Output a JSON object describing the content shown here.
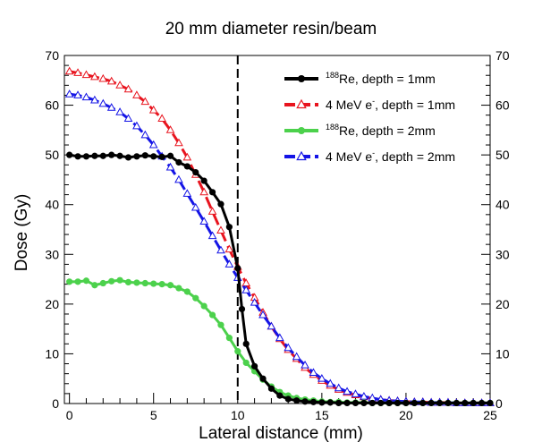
{
  "chart_data": {
    "type": "line",
    "title": "20 mm diameter resin/beam",
    "xlabel": "Lateral distance (mm)",
    "ylabel": "Dose (Gy)",
    "xlim": [
      -0.3,
      25
    ],
    "ylim": [
      0,
      70
    ],
    "x_ticks": [
      0,
      5,
      10,
      15,
      20,
      25
    ],
    "y_ticks": [
      0,
      10,
      20,
      30,
      40,
      50,
      60,
      70
    ],
    "grid": false,
    "legend_position": "top-right",
    "reference_line": {
      "x": 10,
      "style": "dashed",
      "color": "#000000"
    },
    "series": [
      {
        "name": "Re, depth = 1mm",
        "name_superscript": "188",
        "color": "#000000",
        "line_style": "solid",
        "marker": "circle-filled",
        "x": [
          0,
          0.5,
          1,
          1.5,
          2,
          2.5,
          3,
          3.5,
          4,
          4.5,
          5,
          5.5,
          6,
          6.5,
          7,
          7.5,
          8,
          8.5,
          9,
          9.5,
          10,
          10.25,
          10.5,
          11,
          11.5,
          12,
          12.5,
          13,
          13.5,
          14,
          14.5,
          15,
          15.5,
          16,
          16.5,
          17,
          17.5,
          18,
          18.5,
          19,
          19.5,
          20,
          20.5,
          21,
          21.5,
          22,
          22.5,
          23,
          23.5,
          24,
          24.5,
          25
        ],
        "y": [
          50,
          49.7,
          49.7,
          49.8,
          49.8,
          50,
          49.8,
          49.5,
          49.7,
          49.9,
          49.7,
          49.6,
          49.8,
          48.5,
          47.7,
          46.5,
          44.8,
          42.5,
          40.1,
          35.5,
          27.2,
          19,
          12,
          7.5,
          5,
          3,
          1.6,
          0.9,
          0.6,
          0.4,
          0.3,
          0.2,
          0.2,
          0.1,
          0.1,
          0.1,
          0.1,
          0.1,
          0.1,
          0.1,
          0.1,
          0.1,
          0.1,
          0.1,
          0.1,
          0.1,
          0.1,
          0.1,
          0.1,
          0.1,
          0.1,
          0.1
        ]
      },
      {
        "name": "4 MeV e, depth = 1mm",
        "name_superscript": "-",
        "color": "#e8141e",
        "line_style": "dashed",
        "marker": "triangle-open",
        "x": [
          0,
          0.5,
          1,
          1.5,
          2,
          2.5,
          3,
          3.5,
          4,
          4.5,
          5,
          5.5,
          6,
          6.5,
          7,
          7.5,
          8,
          8.5,
          9,
          9.5,
          10,
          10.5,
          11,
          11.5,
          12,
          12.5,
          13,
          13.5,
          14,
          14.5,
          15,
          15.5,
          16,
          16.5,
          17,
          17.5,
          18,
          18.5,
          19,
          19.5,
          20,
          20.5,
          21,
          21.5,
          22,
          22.5,
          23,
          23.5,
          24,
          24.5,
          25
        ],
        "y": [
          66.8,
          66.5,
          66.1,
          65.7,
          65.3,
          64.8,
          64,
          63.2,
          62,
          60.7,
          59,
          57.3,
          55,
          52.4,
          49.5,
          46,
          42.5,
          38.6,
          34.8,
          31,
          27.5,
          24.2,
          21.3,
          18.3,
          15.5,
          13,
          10.8,
          9,
          7.2,
          5.8,
          4.6,
          3.6,
          2.8,
          2.2,
          1.7,
          1.3,
          1,
          0.8,
          0.6,
          0.5,
          0.4,
          0.3,
          0.3,
          0.2,
          0.2,
          0.2,
          0.1,
          0.1,
          0.1,
          0.1,
          0.1
        ]
      },
      {
        "name": "Re, depth = 2mm",
        "name_superscript": "188",
        "color": "#4cd14c",
        "line_style": "solid",
        "marker": "circle-filled",
        "x": [
          0,
          0.5,
          1,
          1.5,
          2,
          2.5,
          3,
          3.5,
          4,
          4.5,
          5,
          5.5,
          6,
          6.5,
          7,
          7.5,
          8,
          8.5,
          9,
          9.5,
          10,
          10.5,
          11,
          11.5,
          12,
          12.5,
          13,
          13.5,
          14,
          14.5,
          15,
          15.5,
          16,
          16.5,
          17,
          17.5,
          18,
          18.5,
          19,
          19.5,
          20,
          20.5,
          21,
          21.5,
          22,
          22.5,
          23,
          23.5,
          24,
          24.5,
          25
        ],
        "y": [
          24.5,
          24.5,
          24.7,
          23.8,
          24.2,
          24.6,
          24.8,
          24.4,
          24.3,
          24.2,
          24.1,
          24,
          23.8,
          23.2,
          22.5,
          21.2,
          19.6,
          17.8,
          15.8,
          13.2,
          10.5,
          8.2,
          6.5,
          4.8,
          3.4,
          2.3,
          1.6,
          1.1,
          0.8,
          0.6,
          0.4,
          0.3,
          0.3,
          0.2,
          0.2,
          0.2,
          0.1,
          0.1,
          0.1,
          0.1,
          0.1,
          0.1,
          0.1,
          0.1,
          0.1,
          0.1,
          0.1,
          0.1,
          0.1,
          0.1,
          0.1
        ]
      },
      {
        "name": "4 MeV e, depth = 2mm",
        "name_superscript": "-",
        "color": "#1414e6",
        "line_style": "dashed",
        "marker": "triangle-open",
        "x": [
          0,
          0.5,
          1,
          1.5,
          2,
          2.5,
          3,
          3.5,
          4,
          4.5,
          5,
          5.5,
          6,
          6.5,
          7,
          7.5,
          8,
          8.5,
          9,
          9.5,
          10,
          10.5,
          11,
          11.5,
          12,
          12.5,
          13,
          13.5,
          14,
          14.5,
          15,
          15.5,
          16,
          16.5,
          17,
          17.5,
          18,
          18.5,
          19,
          19.5,
          20,
          20.5,
          21,
          21.5,
          22,
          22.5,
          23,
          23.5,
          24,
          24.5,
          25
        ],
        "y": [
          62.2,
          62,
          61.6,
          61,
          60.3,
          59.5,
          58.6,
          57.3,
          55.8,
          54,
          52,
          49.7,
          47.5,
          45,
          42.2,
          39.4,
          36.6,
          33.7,
          30.8,
          28,
          25.3,
          22.8,
          20.3,
          17.8,
          15.5,
          13.2,
          11.2,
          9.4,
          7.7,
          6.2,
          5,
          4,
          3.1,
          2.4,
          1.9,
          1.4,
          1.1,
          0.8,
          0.6,
          0.5,
          0.4,
          0.3,
          0.3,
          0.2,
          0.2,
          0.2,
          0.1,
          0.1,
          0.1,
          0.1,
          0.1
        ]
      }
    ]
  }
}
